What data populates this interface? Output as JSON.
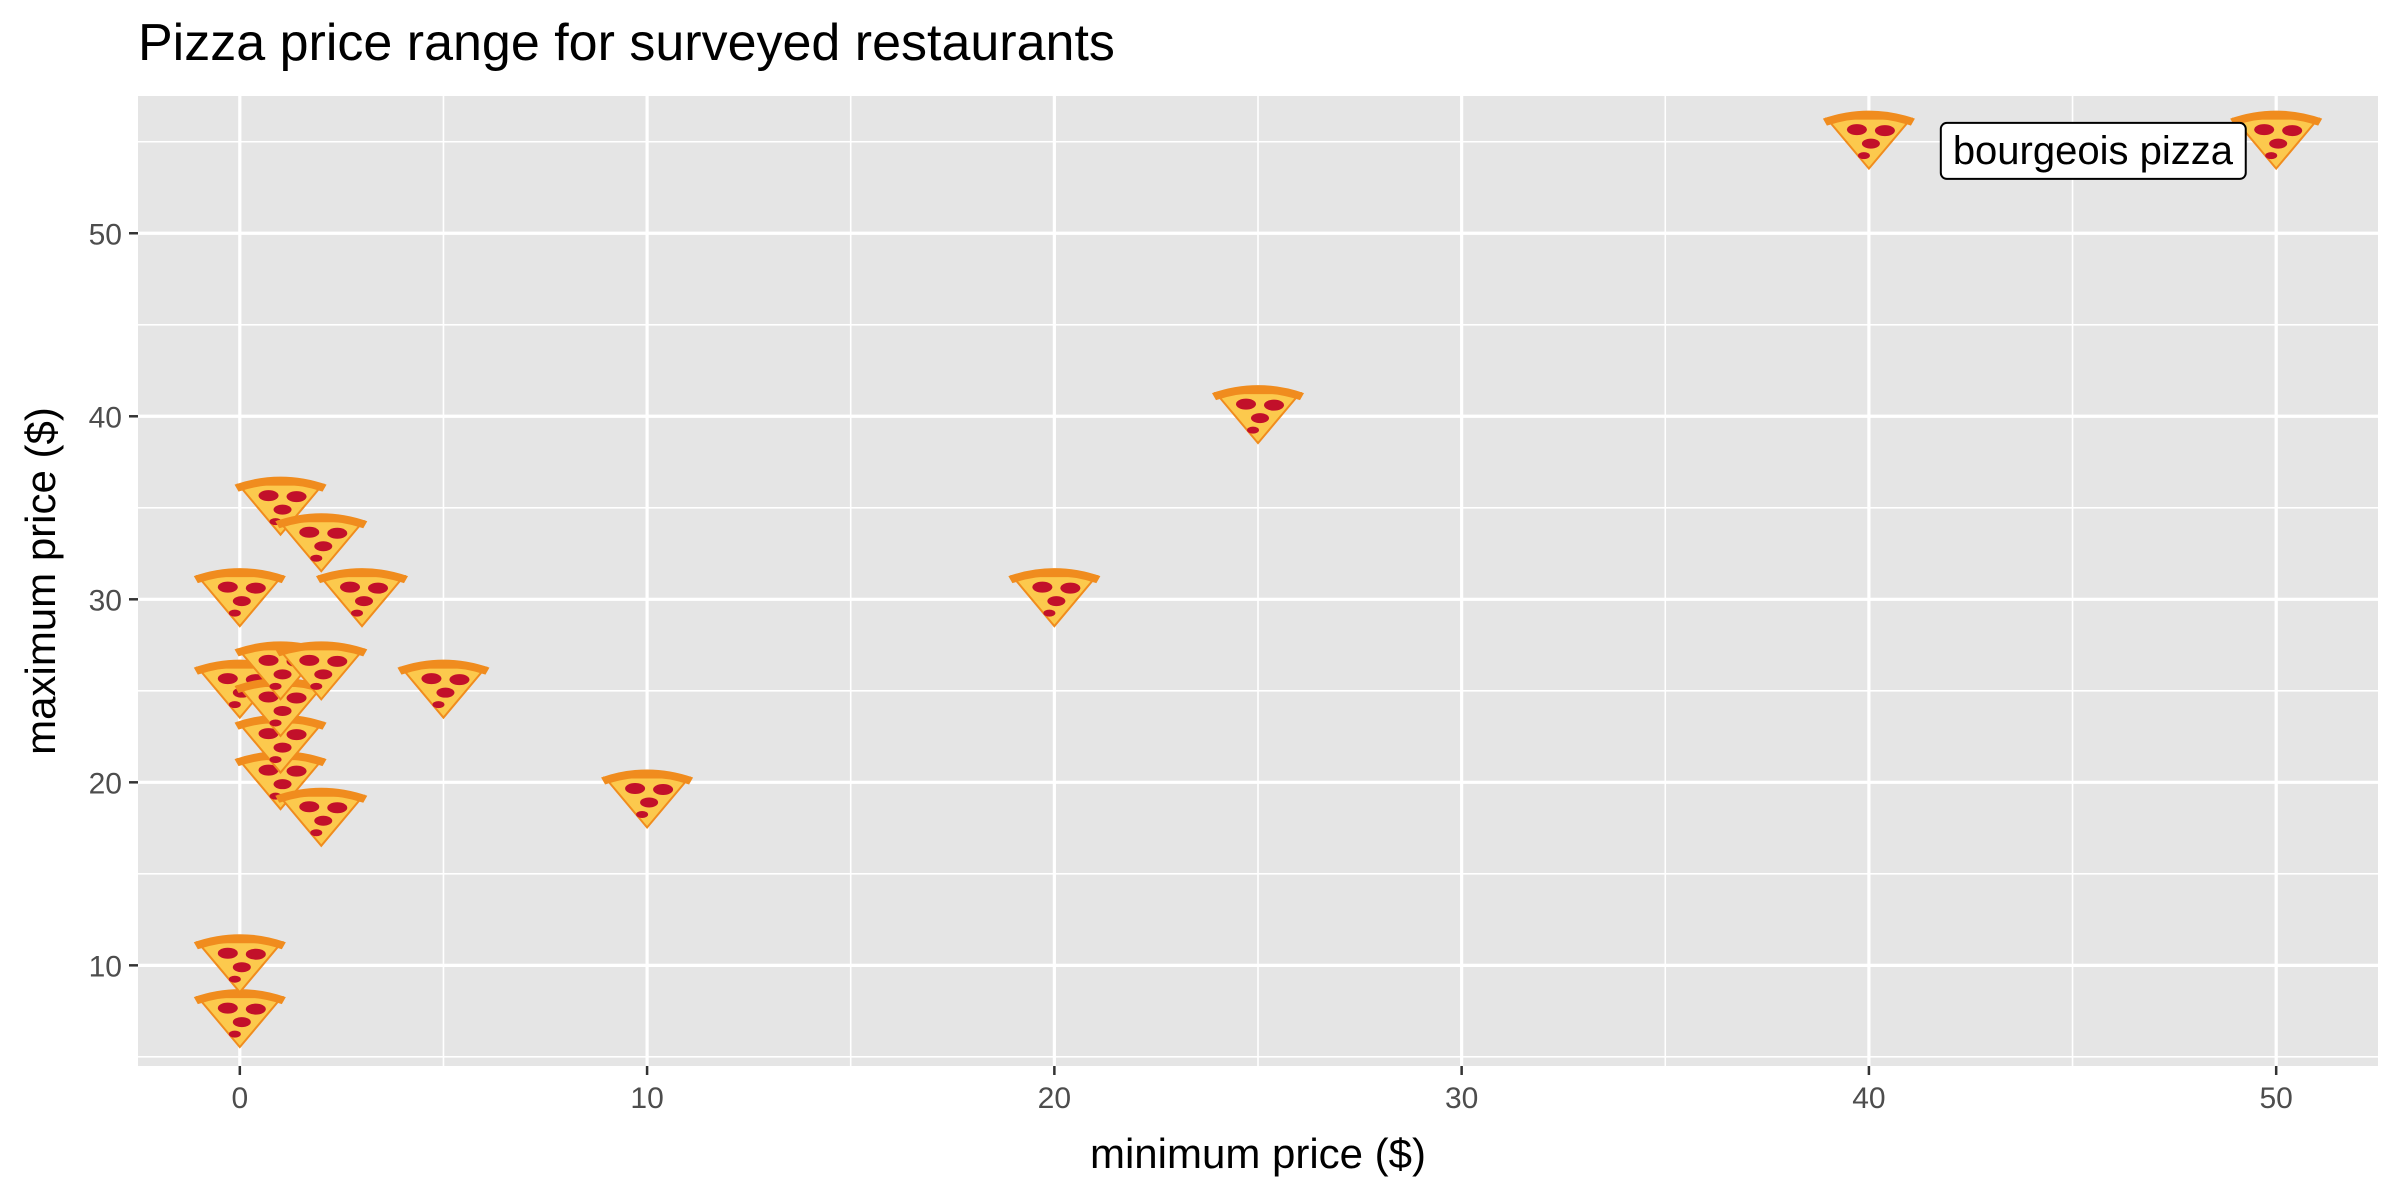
{
  "chart_data": {
    "type": "scatter",
    "title": "Pizza price range for surveyed restaurants",
    "xlabel": "minimum price ($)",
    "ylabel": "maximum price ($)",
    "xlim": [
      -2.5,
      52.5
    ],
    "ylim": [
      4.5,
      57.5
    ],
    "x_ticks": [
      0,
      10,
      20,
      30,
      40,
      50
    ],
    "y_ticks": [
      10,
      20,
      30,
      40,
      50
    ],
    "grid": true,
    "marker": "pizza-slice-icon",
    "points": [
      {
        "x": 0,
        "y": 7.5
      },
      {
        "x": 0,
        "y": 10.5
      },
      {
        "x": 0,
        "y": 25.5
      },
      {
        "x": 0,
        "y": 30.5
      },
      {
        "x": 1,
        "y": 20.5
      },
      {
        "x": 1,
        "y": 22.5
      },
      {
        "x": 1,
        "y": 24.5
      },
      {
        "x": 1,
        "y": 26.5
      },
      {
        "x": 1,
        "y": 35.5
      },
      {
        "x": 2,
        "y": 18.5
      },
      {
        "x": 2,
        "y": 26.5
      },
      {
        "x": 2,
        "y": 33.5
      },
      {
        "x": 3,
        "y": 30.5
      },
      {
        "x": 5,
        "y": 25.5
      },
      {
        "x": 10,
        "y": 19.5
      },
      {
        "x": 20,
        "y": 30.5
      },
      {
        "x": 25,
        "y": 40.5
      },
      {
        "x": 40,
        "y": 55.5
      },
      {
        "x": 50,
        "y": 55.5
      }
    ],
    "annotations": [
      {
        "text": "bourgeois pizza",
        "x": 45.5,
        "y": 54.5
      }
    ]
  },
  "colors": {
    "panel_background": "#e5e5e5",
    "grid_line": "#ffffff",
    "axis_text": "#4d4d4d",
    "crust": "#f08c1e",
    "cheese": "#fcc94d",
    "pepperoni": "#c2102a"
  }
}
